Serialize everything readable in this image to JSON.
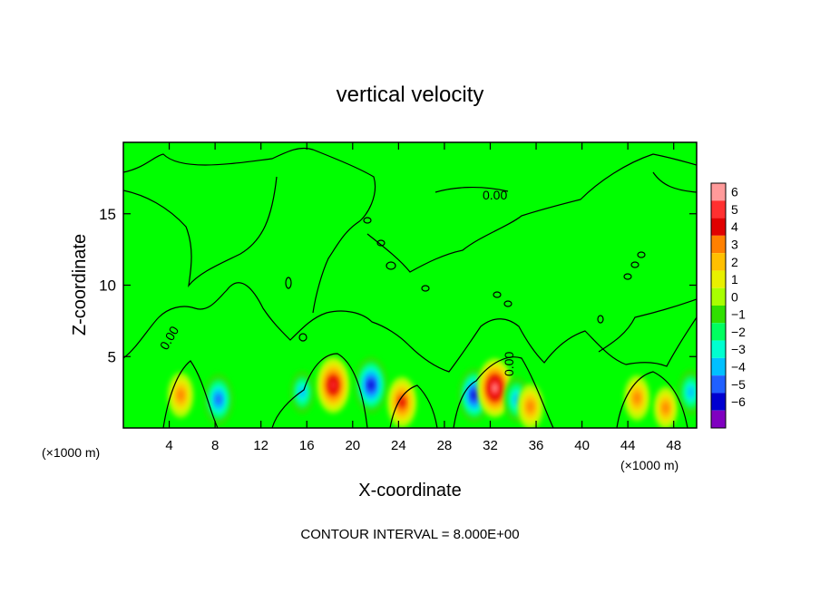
{
  "chart_data": {
    "type": "heatmap",
    "title": "vertical velocity",
    "xlabel": "X-coordinate",
    "ylabel": "Z-coordinate",
    "x_unit": "(×1000 m)",
    "x_unit_right": "(×1000 m)",
    "xlim": [
      0,
      50
    ],
    "ylim": [
      0,
      20
    ],
    "x_ticks": [
      4,
      8,
      12,
      16,
      20,
      24,
      28,
      32,
      36,
      40,
      44,
      48
    ],
    "y_ticks": [
      5,
      10,
      15
    ],
    "contour_label": "0.00",
    "footer": "CONTOUR INTERVAL = 8.000E+00",
    "colorbar": {
      "ticks": [
        6,
        5,
        4,
        3,
        2,
        1,
        0,
        -1,
        -2,
        -3,
        -4,
        -5,
        -6
      ],
      "colors": [
        "#ff9a9a",
        "#ff3030",
        "#e00000",
        "#ff8000",
        "#ffc000",
        "#e8f000",
        "#a8ff00",
        "#30e000",
        "#00ff60",
        "#00ffd0",
        "#00c0ff",
        "#2060ff",
        "#0000d0",
        "#8000c0"
      ]
    },
    "features": [
      {
        "x": 5.0,
        "z": 2.3,
        "value": 3.0
      },
      {
        "x": 8.3,
        "z": 2.0,
        "value": -4.0
      },
      {
        "x": 15.6,
        "z": 2.5,
        "value": -2.5
      },
      {
        "x": 18.3,
        "z": 3.0,
        "value": 5.0
      },
      {
        "x": 21.6,
        "z": 3.0,
        "value": -5.0
      },
      {
        "x": 24.3,
        "z": 1.8,
        "value": 4.0
      },
      {
        "x": 30.6,
        "z": 2.3,
        "value": -4.5
      },
      {
        "x": 32.4,
        "z": 2.8,
        "value": 5.5
      },
      {
        "x": 34.3,
        "z": 2.0,
        "value": -3.0
      },
      {
        "x": 35.5,
        "z": 1.5,
        "value": 3.0
      },
      {
        "x": 44.8,
        "z": 2.1,
        "value": 3.0
      },
      {
        "x": 47.3,
        "z": 1.4,
        "value": 2.5
      },
      {
        "x": 49.5,
        "z": 2.5,
        "value": -3.0
      }
    ],
    "grid": false
  }
}
